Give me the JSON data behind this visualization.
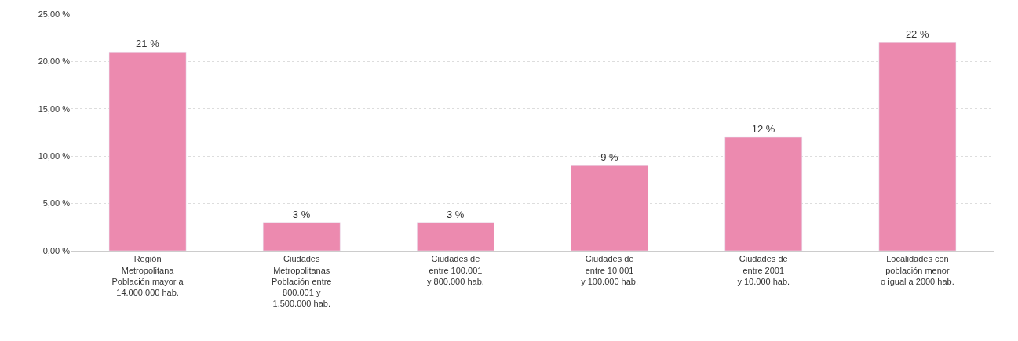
{
  "chart_data": {
    "type": "bar",
    "categories": [
      "Región\nMetropolitana\nPoblación mayor a\n14.000.000 hab.",
      "Ciudades\nMetropolitanas\nPoblación entre\n800.001 y\n1.500.000 hab.",
      "Ciudades de\nentre 100.001\ny 800.000 hab.",
      "Ciudades de\nentre 10.001\ny 100.000 hab.",
      "Ciudades de\nentre 2001\ny 10.000 hab.",
      "Localidades con\npoblación menor\no igual a 2000 hab."
    ],
    "values": [
      21,
      3,
      3,
      9,
      12,
      22
    ],
    "value_labels": [
      "21 %",
      "3 %",
      "3 %",
      "9 %",
      "12 %",
      "22 %"
    ],
    "color": "#ec8aaf",
    "ylim": [
      0,
      25
    ],
    "yticks": [
      {
        "value": 0,
        "label": "0,00 %"
      },
      {
        "value": 5,
        "label": "5,00 %"
      },
      {
        "value": 10,
        "label": "10,00 %"
      },
      {
        "value": 15,
        "label": "15,00 %"
      },
      {
        "value": 20,
        "label": "20,00 %"
      },
      {
        "value": 25,
        "label": "25,00 %"
      }
    ],
    "grid": "y",
    "legend": false
  }
}
